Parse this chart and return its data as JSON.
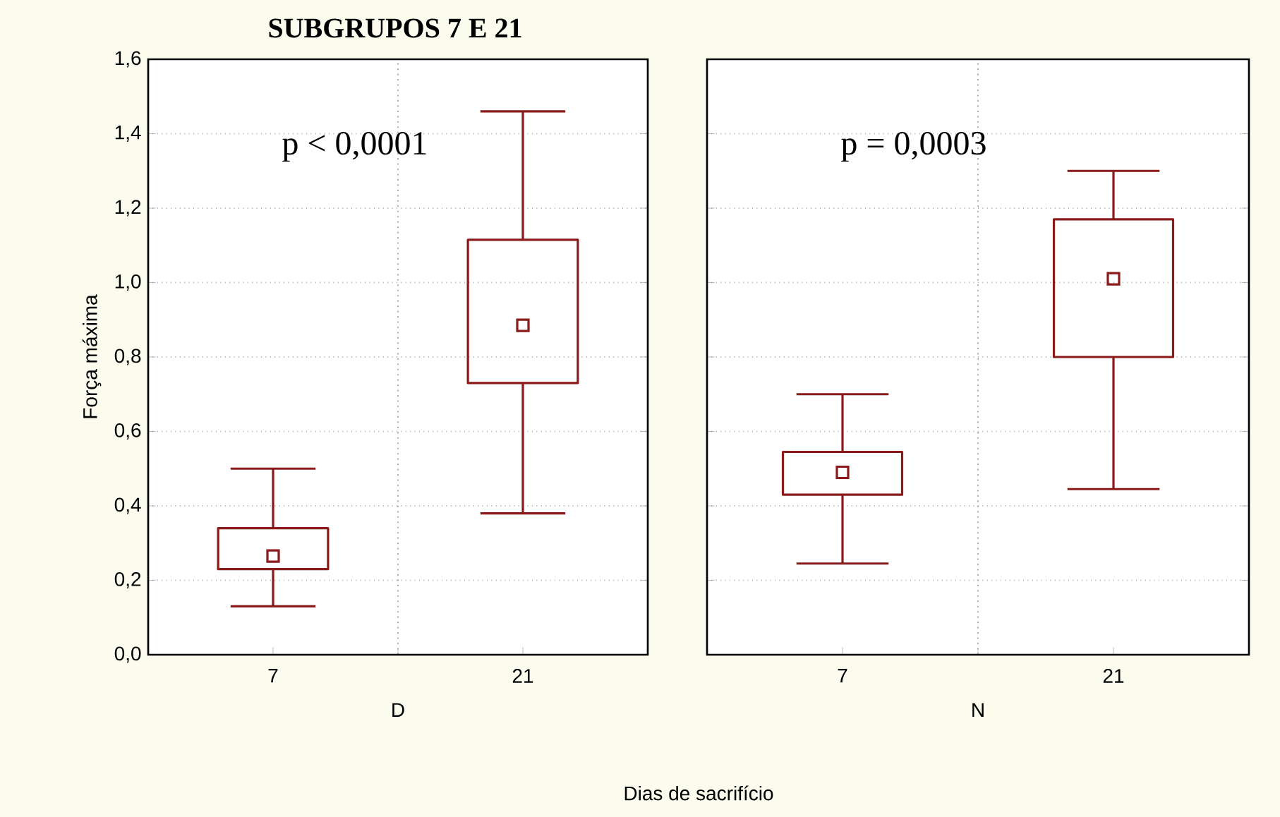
{
  "chart_data": [
    {
      "type": "box",
      "title": "SUBGRUPOS 7 E 21",
      "xlabel": "D",
      "ylabel": "Força máxima",
      "categories": [
        "7",
        "21"
      ],
      "series": [
        {
          "color": "#8b1a1a",
          "boxes": [
            {
              "low": 0.13,
              "q1": 0.23,
              "median": 0.265,
              "q3": 0.34,
              "high": 0.5
            },
            {
              "low": 0.38,
              "q1": 0.73,
              "median": 0.885,
              "q3": 1.115,
              "high": 1.46
            }
          ]
        }
      ],
      "ylim": [
        0,
        1.6
      ],
      "yticks": [
        {
          "value": 0,
          "label": "0,0"
        },
        {
          "value": 0.2,
          "label": "0,2"
        },
        {
          "value": 0.4,
          "label": "0,4"
        },
        {
          "value": 0.6,
          "label": "0,6"
        },
        {
          "value": 0.8,
          "label": "0,8"
        },
        {
          "value": 1.0,
          "label": "1,0"
        },
        {
          "value": 1.2,
          "label": "1,2"
        },
        {
          "value": 1.4,
          "label": "1,4"
        },
        {
          "value": 1.6,
          "label": "1,6"
        }
      ],
      "annotations": [
        "p < 0,0001",
        "Dias de sacrifício"
      ],
      "grid": true,
      "marker": "square"
    },
    {
      "type": "box",
      "xlabel": "N",
      "categories": [
        "7",
        "21"
      ],
      "series": [
        {
          "color": "#8b1a1a",
          "boxes": [
            {
              "low": 0.245,
              "q1": 0.43,
              "median": 0.49,
              "q3": 0.545,
              "high": 0.7
            },
            {
              "low": 0.445,
              "q1": 0.8,
              "median": 1.01,
              "q3": 1.17,
              "high": 1.3
            }
          ]
        }
      ],
      "ylim": [
        0,
        1.6
      ],
      "yticks": [
        0,
        0.2,
        0.4,
        0.6,
        0.8,
        1.0,
        1.2,
        1.4,
        1.6
      ],
      "annotations": [
        "p = 0,0003"
      ],
      "grid": true,
      "marker": "square",
      "tick_labels": "x"
    }
  ]
}
